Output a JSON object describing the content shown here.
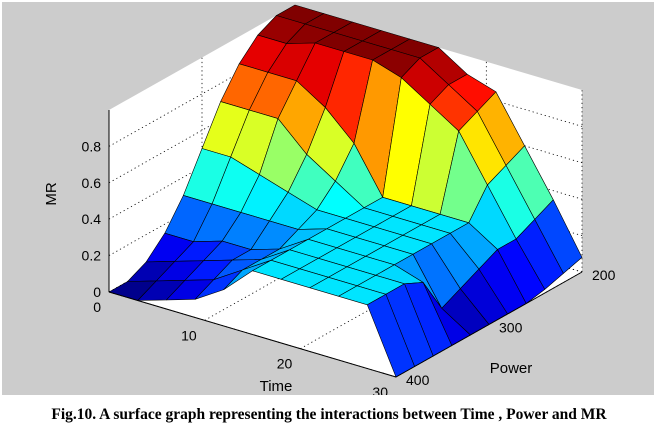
{
  "caption": "Fig.10. A surface graph representing the interactions between Time , Power and MR",
  "chart_data": {
    "type": "surface",
    "title": "",
    "xlabel": "Time",
    "ylabel": "Power",
    "zlabel": "MR",
    "x_ticks": [
      "0",
      "10",
      "20",
      "30"
    ],
    "y_ticks": [
      "200",
      "300",
      "400"
    ],
    "z_ticks": [
      "0",
      "0.2",
      "0.4",
      "0.6",
      "0.8"
    ],
    "xlim": [
      0,
      30
    ],
    "ylim": [
      400,
      200
    ],
    "zlim": [
      0,
      1
    ],
    "grid": true,
    "colormap": "jet",
    "x": [
      0,
      3,
      6,
      9,
      12,
      15,
      18,
      21,
      24,
      27,
      30
    ],
    "y": [
      200,
      220,
      240,
      260,
      280,
      300,
      320,
      340,
      360,
      380,
      400
    ],
    "z": [
      [
        1.0,
        1.0,
        1.0,
        1.0,
        1.0,
        1.0,
        0.9,
        0.85,
        0.6,
        0.35,
        0.08
      ],
      [
        1.0,
        1.0,
        1.0,
        1.0,
        1.0,
        1.0,
        0.9,
        0.8,
        0.55,
        0.3,
        0.05
      ],
      [
        0.95,
        0.95,
        1.0,
        1.0,
        1.0,
        0.95,
        0.85,
        0.75,
        0.5,
        0.25,
        0.02
      ],
      [
        0.85,
        0.85,
        0.85,
        0.75,
        0.6,
        0.35,
        0.35,
        0.35,
        0.35,
        0.25,
        0.0
      ],
      [
        0.7,
        0.7,
        0.7,
        0.55,
        0.45,
        0.35,
        0.35,
        0.35,
        0.35,
        0.2,
        0.0
      ],
      [
        0.5,
        0.5,
        0.45,
        0.4,
        0.35,
        0.35,
        0.35,
        0.35,
        0.35,
        0.15,
        0.0
      ],
      [
        0.3,
        0.3,
        0.3,
        0.3,
        0.3,
        0.35,
        0.35,
        0.35,
        0.35,
        0.1,
        0.0
      ],
      [
        0.15,
        0.15,
        0.2,
        0.2,
        0.25,
        0.35,
        0.35,
        0.35,
        0.35,
        0.3,
        0.0
      ],
      [
        0.05,
        0.1,
        0.15,
        0.2,
        0.25,
        0.35,
        0.35,
        0.35,
        0.35,
        0.35,
        0.0
      ],
      [
        0.0,
        0.05,
        0.1,
        0.15,
        0.25,
        0.35,
        0.35,
        0.35,
        0.35,
        0.35,
        0.0
      ],
      [
        0.0,
        0.0,
        0.05,
        0.1,
        0.2,
        0.35,
        0.35,
        0.35,
        0.35,
        0.35,
        0.0
      ]
    ]
  }
}
